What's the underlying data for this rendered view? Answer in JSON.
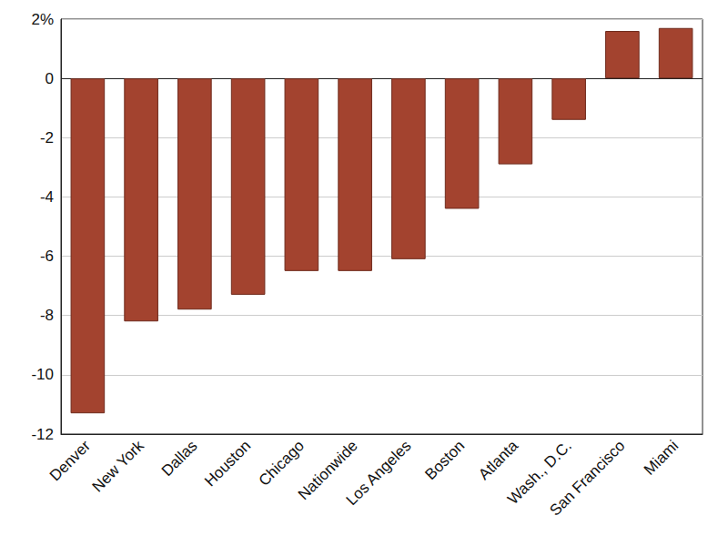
{
  "chart_data": {
    "type": "bar",
    "categories": [
      "Denver",
      "New York",
      "Dallas",
      "Houston",
      "Chicago",
      "Nationwide",
      "Los Angeles",
      "Boston",
      "Atlanta",
      "Wash., D.C.",
      "San Francisco",
      "Miami"
    ],
    "values": [
      -11.3,
      -8.2,
      -7.8,
      -7.3,
      -6.5,
      -6.5,
      -6.1,
      -4.4,
      -2.9,
      -1.4,
      1.6,
      1.7
    ],
    "color": "#a3432f",
    "ylim": [
      -12,
      2
    ],
    "yticks": [
      -12,
      -10,
      -8,
      -6,
      -4,
      -2,
      0,
      {
        "value": 2,
        "label": "2%"
      }
    ],
    "grid": true
  }
}
